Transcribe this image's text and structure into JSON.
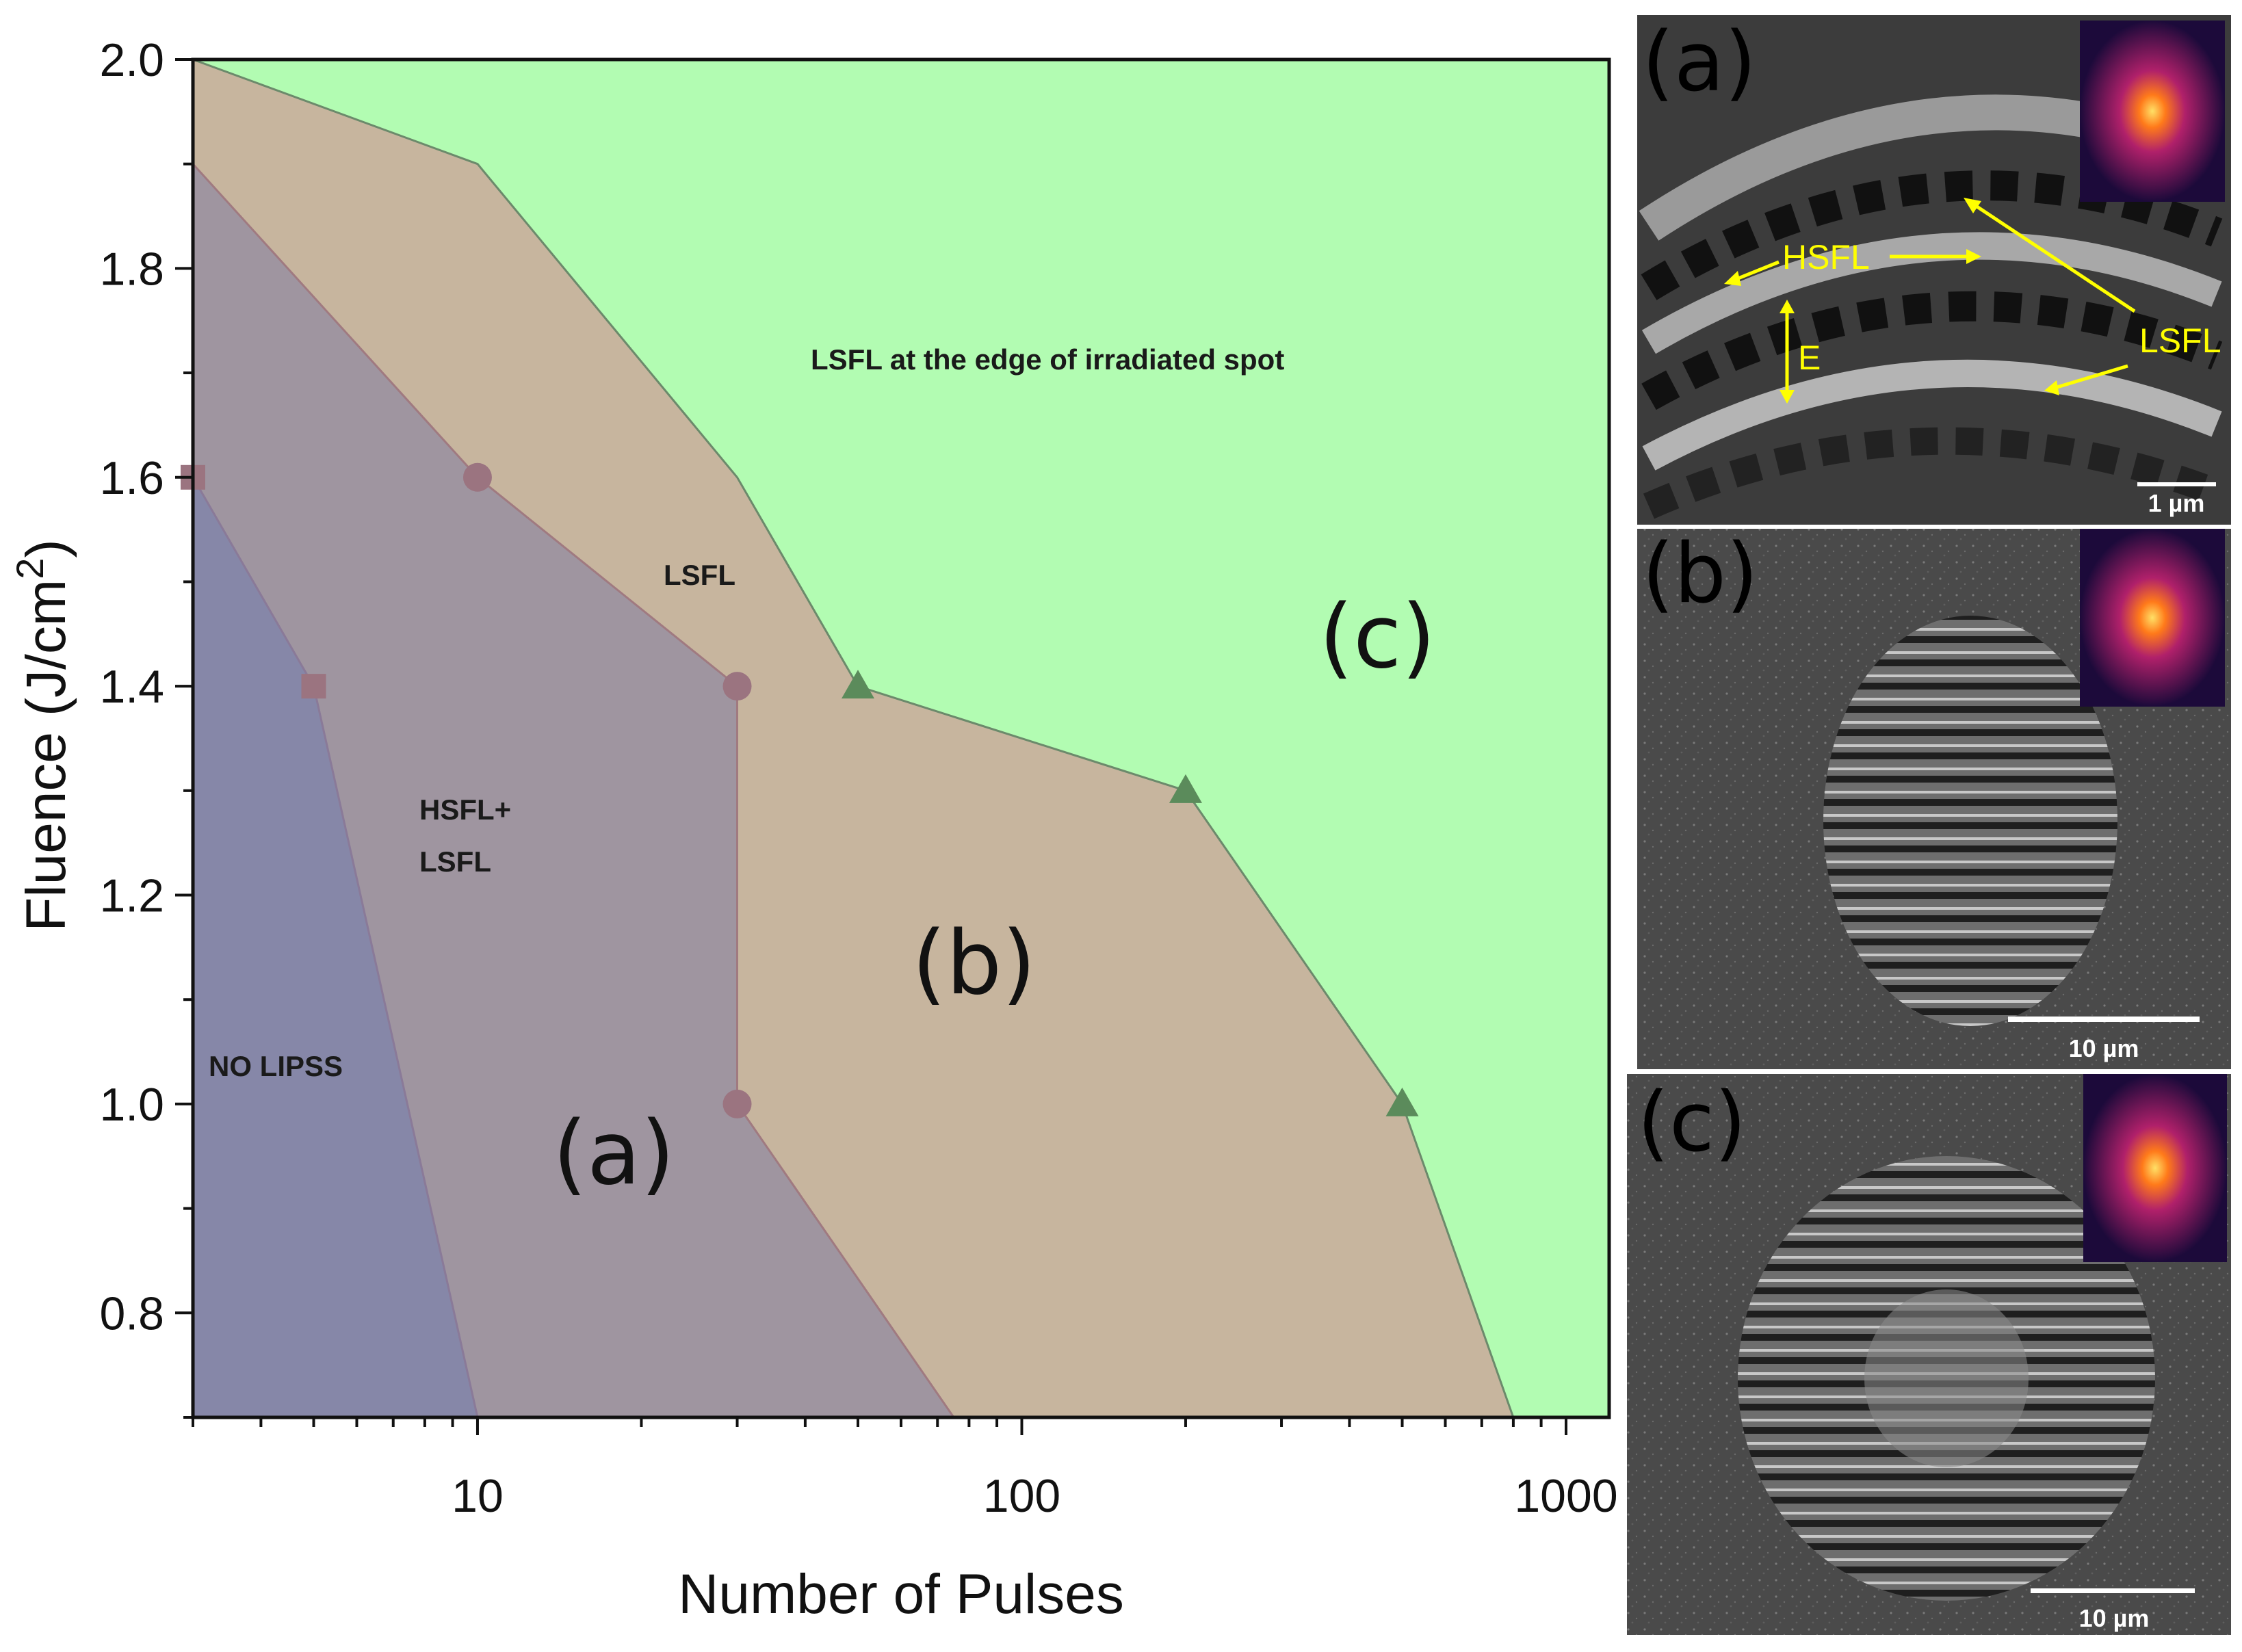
{
  "chart_data": {
    "type": "area",
    "xlabel": "Number of Pulses",
    "ylabel_main": "Fluence (J/cm",
    "ylabel_sup": "2",
    "ylabel_tail": ")",
    "x_scale": "log",
    "xlim": [
      3,
      1200
    ],
    "ylim": [
      0.7,
      2.0
    ],
    "x_ticks": [
      10,
      100,
      1000
    ],
    "x_tick_labels": [
      "10",
      "100",
      "1000"
    ],
    "y_ticks": [
      0.8,
      1.0,
      1.2,
      1.4,
      1.6,
      1.8,
      2.0
    ],
    "y_tick_labels": [
      "0.8",
      "1.0",
      "1.2",
      "1.4",
      "1.6",
      "1.8",
      "2.0"
    ],
    "colors": {
      "background": "#b2fcb2",
      "lsfl_region": "#c7b59e",
      "hsfl_region": "#9f95a0",
      "nolipss_region": "#8687a8",
      "marker_square": "#9b7480",
      "marker_circle": "#9b7480",
      "marker_triangle": "#5b8b5b"
    },
    "regions": [
      {
        "key": "lsfl",
        "points": [
          [
            3,
            2.0
          ],
          [
            10,
            1.9
          ],
          [
            30,
            1.6
          ],
          [
            50,
            1.4
          ],
          [
            200,
            1.3
          ],
          [
            500,
            1.0
          ],
          [
            800,
            0.7
          ],
          [
            3,
            0.7
          ]
        ]
      },
      {
        "key": "hsfl",
        "points": [
          [
            3,
            1.9
          ],
          [
            10,
            1.6
          ],
          [
            30,
            1.4
          ],
          [
            30,
            1.0
          ],
          [
            75,
            0.7
          ],
          [
            3,
            0.7
          ]
        ]
      },
      {
        "key": "nolipss",
        "points": [
          [
            3,
            1.6
          ],
          [
            5,
            1.4
          ],
          [
            10,
            0.7
          ],
          [
            3,
            0.7
          ]
        ]
      }
    ],
    "series": [
      {
        "marker": "square",
        "points": [
          [
            3,
            1.6
          ],
          [
            5,
            1.4
          ]
        ]
      },
      {
        "marker": "circle",
        "points": [
          [
            10,
            1.6
          ],
          [
            30,
            1.4
          ],
          [
            30,
            1.0
          ]
        ]
      },
      {
        "marker": "triangle",
        "points": [
          [
            50,
            1.4
          ],
          [
            200,
            1.3
          ],
          [
            500,
            1.0
          ]
        ]
      }
    ],
    "annotations": {
      "top_region": "LSFL at the edge of irradiated spot",
      "lsfl": "LSFL",
      "hsfl_line1": "HSFL+",
      "hsfl_line2": "LSFL",
      "nolipss": "NO LIPSS",
      "label_a": "(a)",
      "label_b": "(b)",
      "label_c": "(c)"
    }
  },
  "panels": {
    "a": {
      "letter": "(a)",
      "labels": {
        "hsfl": "HSFL",
        "lsfl": "LSFL",
        "e": "E"
      },
      "scale_bar": "1 µm"
    },
    "b": {
      "letter": "(b)",
      "scale_bar": "10 µm"
    },
    "c": {
      "letter": "(c)",
      "scale_bar": "10 µm"
    }
  }
}
